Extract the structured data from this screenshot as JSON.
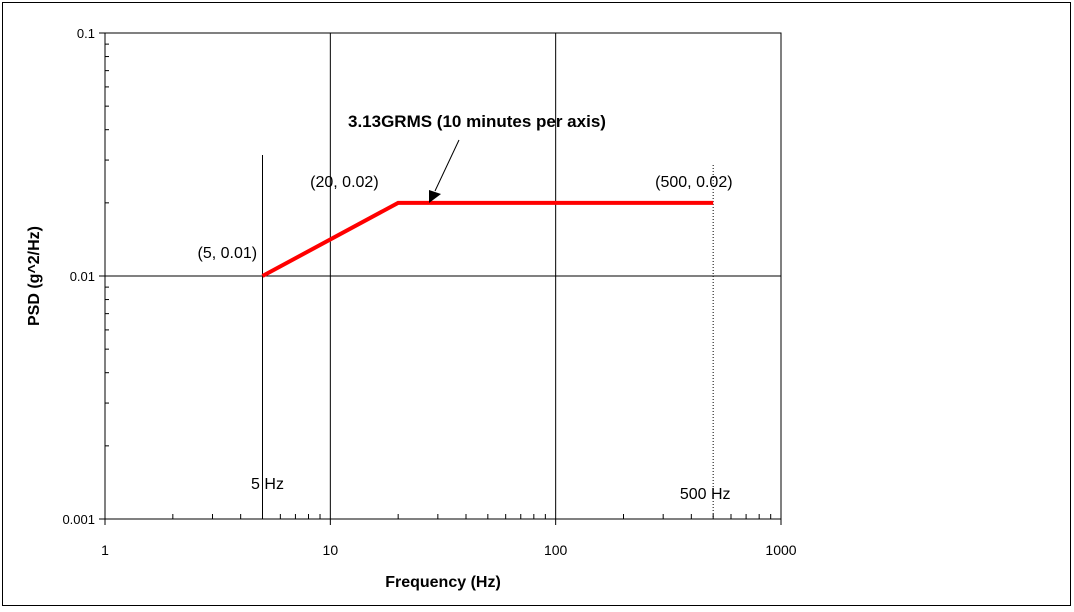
{
  "chart_data": {
    "type": "line",
    "xlabel": "Frequency (Hz)",
    "ylabel": "PSD (g^2/Hz)",
    "xscale": "log",
    "yscale": "log",
    "xlim": [
      1,
      1000
    ],
    "ylim": [
      0.001,
      0.1
    ],
    "grid": "major",
    "x_ticks": [
      {
        "value": 1,
        "label": "1"
      },
      {
        "value": 10,
        "label": "10"
      },
      {
        "value": 100,
        "label": "100"
      },
      {
        "value": 1000,
        "label": "1000"
      }
    ],
    "y_ticks": [
      {
        "value": 0.001,
        "label": "0.001"
      },
      {
        "value": 0.01,
        "label": "0.01"
      },
      {
        "value": 0.1,
        "label": "0.1"
      }
    ],
    "series": [
      {
        "color": "#ff0000",
        "x": [
          5,
          20,
          500
        ],
        "y": [
          0.01,
          0.02,
          0.02
        ]
      }
    ],
    "annotations": {
      "callout": "3.13GRMS (10 minutes per axis)",
      "points": [
        {
          "label": "(5, 0.01)",
          "x": 5,
          "y": 0.01
        },
        {
          "label": "(20, 0.02)",
          "x": 20,
          "y": 0.02
        },
        {
          "label": "(500, 0.02)",
          "x": 500,
          "y": 0.02
        }
      ],
      "freq_markers": [
        {
          "label": "5 Hz",
          "x": 5,
          "style": "solid"
        },
        {
          "label": "500 Hz",
          "x": 500,
          "style": "dotted"
        }
      ]
    },
    "legend": "none"
  }
}
